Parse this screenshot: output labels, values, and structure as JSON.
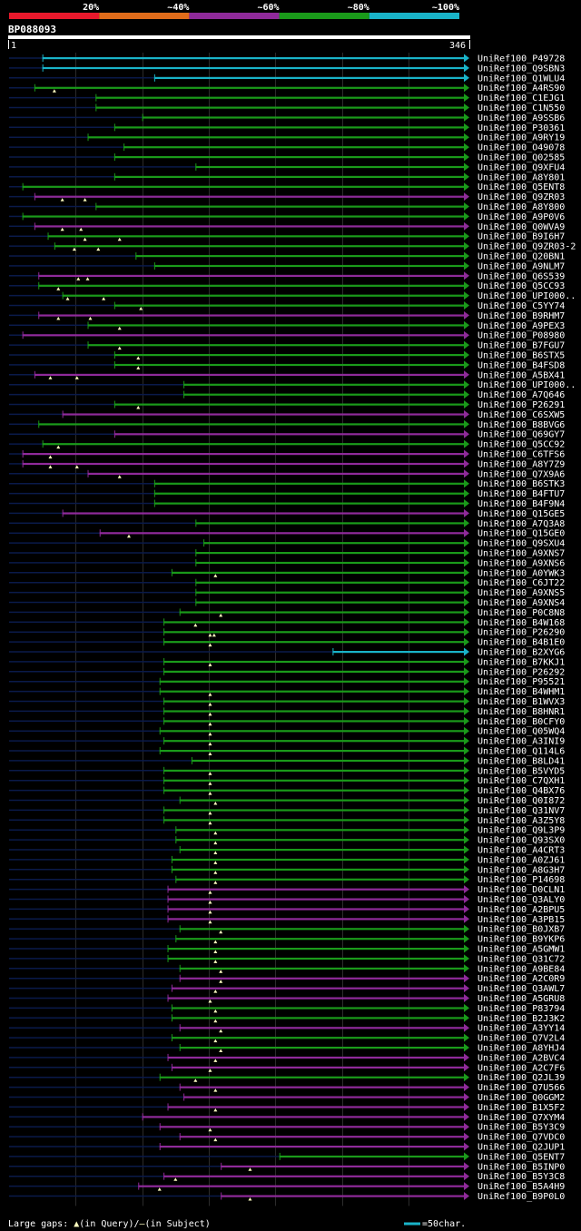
{
  "chart_data": {
    "type": "alignment-overview",
    "title": "BP088093",
    "query_range": [
      1,
      346
    ],
    "ruler_labels": [
      "1",
      "346"
    ],
    "identity_legend": [
      {
        "label": "20%",
        "color": "#e8192c"
      },
      {
        "label": "~40%",
        "color": "#e06c1a"
      },
      {
        "label": "~60%",
        "color": "#8f2a9a"
      },
      {
        "label": "~80%",
        "color": "#1a9a1a"
      },
      {
        "label": "~100%",
        "color": "#19b3c8"
      }
    ],
    "colors": {
      "cyan": "#19b3c8",
      "green": "#1a9a1a",
      "purple": "#8f2a9a",
      "navy": "#0a1a4a",
      "gap": "#ffffc0"
    },
    "hits": [
      {
        "id": "UniRef100_P49728",
        "color": "cyan",
        "start": 26,
        "gaps": []
      },
      {
        "id": "UniRef100_Q9SBN3",
        "color": "cyan",
        "start": 26,
        "gaps": []
      },
      {
        "id": "UniRef100_Q1WLU4",
        "color": "cyan",
        "start": 110,
        "gaps": []
      },
      {
        "id": "UniRef100_A4RS90",
        "color": "green",
        "start": 20,
        "gaps": [
          35
        ]
      },
      {
        "id": "UniRef100_C1EJG1",
        "color": "green",
        "start": 66,
        "gaps": []
      },
      {
        "id": "UniRef100_C1N550",
        "color": "green",
        "start": 66,
        "gaps": []
      },
      {
        "id": "UniRef100_A9SSB6",
        "color": "green",
        "start": 101,
        "gaps": []
      },
      {
        "id": "UniRef100_P30361",
        "color": "green",
        "start": 80,
        "gaps": []
      },
      {
        "id": "UniRef100_A9RY19",
        "color": "green",
        "start": 60,
        "gaps": []
      },
      {
        "id": "UniRef100_O49078",
        "color": "green",
        "start": 87,
        "gaps": []
      },
      {
        "id": "UniRef100_Q02585",
        "color": "green",
        "start": 80,
        "gaps": []
      },
      {
        "id": "UniRef100_Q9XFU4",
        "color": "green",
        "start": 141,
        "gaps": []
      },
      {
        "id": "UniRef100_A8Y801",
        "color": "green",
        "start": 80,
        "gaps": []
      },
      {
        "id": "UniRef100_Q5ENT8",
        "color": "green",
        "start": 11,
        "gaps": []
      },
      {
        "id": "UniRef100_Q9ZR03",
        "color": "purple",
        "start": 20,
        "gaps": [
          41,
          58
        ]
      },
      {
        "id": "UniRef100_A8Y800",
        "color": "green",
        "start": 66,
        "gaps": []
      },
      {
        "id": "UniRef100_A9P0V6",
        "color": "green",
        "start": 11,
        "gaps": []
      },
      {
        "id": "UniRef100_Q0WVA9",
        "color": "purple",
        "start": 20,
        "gaps": [
          41,
          55
        ]
      },
      {
        "id": "UniRef100_B9I6H7",
        "color": "green",
        "start": 30,
        "gaps": [
          58,
          84
        ]
      },
      {
        "id": "UniRef100_Q9ZR03-2",
        "color": "green",
        "start": 35,
        "gaps": [
          50,
          68
        ]
      },
      {
        "id": "UniRef100_Q20BN1",
        "color": "green",
        "start": 96,
        "gaps": []
      },
      {
        "id": "UniRef100_A9NLM7",
        "color": "green",
        "start": 110,
        "gaps": []
      },
      {
        "id": "UniRef100_Q6S539",
        "color": "purple",
        "start": 23,
        "gaps": [
          53,
          60
        ]
      },
      {
        "id": "UniRef100_Q5CC93",
        "color": "green",
        "start": 23,
        "gaps": [
          38
        ]
      },
      {
        "id": "UniRef100_UPI000..",
        "color": "green",
        "start": 41,
        "gaps": [
          45,
          72
        ]
      },
      {
        "id": "UniRef100_C5YY74",
        "color": "green",
        "start": 80,
        "gaps": [
          100
        ]
      },
      {
        "id": "UniRef100_B9RHM7",
        "color": "purple",
        "start": 23,
        "gaps": [
          38,
          62
        ]
      },
      {
        "id": "UniRef100_A9PEX3",
        "color": "green",
        "start": 60,
        "gaps": [
          84
        ]
      },
      {
        "id": "UniRef100_P08980",
        "color": "purple",
        "start": 11,
        "gaps": []
      },
      {
        "id": "UniRef100_B7FGU7",
        "color": "green",
        "start": 60,
        "gaps": [
          84
        ]
      },
      {
        "id": "UniRef100_B6STX5",
        "color": "green",
        "start": 80,
        "gaps": [
          98
        ]
      },
      {
        "id": "UniRef100_B4FSD8",
        "color": "green",
        "start": 80,
        "gaps": [
          98
        ]
      },
      {
        "id": "UniRef100_A5BX41",
        "color": "purple",
        "start": 20,
        "gaps": [
          32,
          52
        ]
      },
      {
        "id": "UniRef100_UPI000..",
        "color": "green",
        "start": 132,
        "gaps": []
      },
      {
        "id": "UniRef100_A7Q646",
        "color": "green",
        "start": 132,
        "gaps": []
      },
      {
        "id": "UniRef100_P26291",
        "color": "green",
        "start": 80,
        "gaps": [
          98
        ]
      },
      {
        "id": "UniRef100_C6SXW5",
        "color": "purple",
        "start": 41,
        "gaps": []
      },
      {
        "id": "UniRef100_B8BVG6",
        "color": "green",
        "start": 23,
        "gaps": []
      },
      {
        "id": "UniRef100_Q69GY7",
        "color": "purple",
        "start": 80,
        "gaps": []
      },
      {
        "id": "UniRef100_Q5CC92",
        "color": "green",
        "start": 26,
        "gaps": [
          38
        ]
      },
      {
        "id": "UniRef100_C6TFS6",
        "color": "purple",
        "start": 11,
        "gaps": [
          32
        ]
      },
      {
        "id": "UniRef100_A8Y7Z9",
        "color": "purple",
        "start": 11,
        "gaps": [
          32,
          52
        ]
      },
      {
        "id": "UniRef100_Q7X9A6",
        "color": "purple",
        "start": 60,
        "gaps": [
          84
        ]
      },
      {
        "id": "UniRef100_B6STK3",
        "color": "green",
        "start": 110,
        "gaps": []
      },
      {
        "id": "UniRef100_B4FTU7",
        "color": "green",
        "start": 110,
        "gaps": []
      },
      {
        "id": "UniRef100_B4F9N4",
        "color": "green",
        "start": 110,
        "gaps": []
      },
      {
        "id": "UniRef100_Q15GE5",
        "color": "purple",
        "start": 41,
        "gaps": []
      },
      {
        "id": "UniRef100_A7Q3A8",
        "color": "green",
        "start": 141,
        "gaps": []
      },
      {
        "id": "UniRef100_Q15GE0",
        "color": "purple",
        "start": 69,
        "gaps": [
          91
        ]
      },
      {
        "id": "UniRef100_Q9SXU4",
        "color": "green",
        "start": 147,
        "gaps": []
      },
      {
        "id": "UniRef100_A9XNS7",
        "color": "green",
        "start": 141,
        "gaps": []
      },
      {
        "id": "UniRef100_A9XNS6",
        "color": "green",
        "start": 141,
        "gaps": []
      },
      {
        "id": "UniRef100_A0YWK3",
        "color": "green",
        "start": 123,
        "gaps": [
          156
        ]
      },
      {
        "id": "UniRef100_C6JT22",
        "color": "green",
        "start": 141,
        "gaps": []
      },
      {
        "id": "UniRef100_A9XNS5",
        "color": "green",
        "start": 141,
        "gaps": []
      },
      {
        "id": "UniRef100_A9XNS4",
        "color": "green",
        "start": 141,
        "gaps": []
      },
      {
        "id": "UniRef100_P0C8N8",
        "color": "green",
        "start": 129,
        "gaps": [
          160
        ]
      },
      {
        "id": "UniRef100_B4W168",
        "color": "green",
        "start": 117,
        "gaps": [
          141
        ]
      },
      {
        "id": "UniRef100_P26290",
        "color": "green",
        "start": 117,
        "gaps": [
          152,
          155
        ]
      },
      {
        "id": "UniRef100_B4B1E0",
        "color": "green",
        "start": 117,
        "gaps": [
          152
        ]
      },
      {
        "id": "UniRef100_B2XYG6",
        "color": "cyan",
        "start": 244,
        "gaps": []
      },
      {
        "id": "UniRef100_B7KKJ1",
        "color": "green",
        "start": 117,
        "gaps": [
          152
        ]
      },
      {
        "id": "UniRef100_P26292",
        "color": "green",
        "start": 117,
        "gaps": []
      },
      {
        "id": "UniRef100_P95521",
        "color": "green",
        "start": 114,
        "gaps": []
      },
      {
        "id": "UniRef100_B4WHM1",
        "color": "green",
        "start": 114,
        "gaps": [
          152
        ]
      },
      {
        "id": "UniRef100_B1WVX3",
        "color": "green",
        "start": 117,
        "gaps": [
          152
        ]
      },
      {
        "id": "UniRef100_B8HNR1",
        "color": "green",
        "start": 117,
        "gaps": [
          152
        ]
      },
      {
        "id": "UniRef100_B0CFY0",
        "color": "green",
        "start": 117,
        "gaps": [
          152
        ]
      },
      {
        "id": "UniRef100_Q05WQ4",
        "color": "green",
        "start": 114,
        "gaps": [
          152
        ]
      },
      {
        "id": "UniRef100_A3INI9",
        "color": "green",
        "start": 117,
        "gaps": [
          152
        ]
      },
      {
        "id": "UniRef100_Q114L6",
        "color": "green",
        "start": 114,
        "gaps": [
          152
        ]
      },
      {
        "id": "UniRef100_B8LD41",
        "color": "green",
        "start": 138,
        "gaps": []
      },
      {
        "id": "UniRef100_B5VYD5",
        "color": "green",
        "start": 117,
        "gaps": [
          152
        ]
      },
      {
        "id": "UniRef100_C7QXH1",
        "color": "green",
        "start": 117,
        "gaps": [
          152
        ]
      },
      {
        "id": "UniRef100_Q4BX76",
        "color": "green",
        "start": 117,
        "gaps": [
          152
        ]
      },
      {
        "id": "UniRef100_Q0I872",
        "color": "green",
        "start": 129,
        "gaps": [
          156
        ]
      },
      {
        "id": "UniRef100_Q31NV7",
        "color": "green",
        "start": 117,
        "gaps": [
          152
        ]
      },
      {
        "id": "UniRef100_A3Z5Y8",
        "color": "green",
        "start": 117,
        "gaps": [
          152
        ]
      },
      {
        "id": "UniRef100_Q9L3P9",
        "color": "green",
        "start": 126,
        "gaps": [
          156
        ]
      },
      {
        "id": "UniRef100_Q93SX0",
        "color": "green",
        "start": 126,
        "gaps": [
          156
        ]
      },
      {
        "id": "UniRef100_A4CRT3",
        "color": "green",
        "start": 129,
        "gaps": [
          156
        ]
      },
      {
        "id": "UniRef100_A0ZJ61",
        "color": "green",
        "start": 123,
        "gaps": [
          156
        ]
      },
      {
        "id": "UniRef100_A8G3H7",
        "color": "green",
        "start": 123,
        "gaps": [
          156
        ]
      },
      {
        "id": "UniRef100_P14698",
        "color": "green",
        "start": 126,
        "gaps": [
          156
        ]
      },
      {
        "id": "UniRef100_D0CLN1",
        "color": "purple",
        "start": 120,
        "gaps": [
          152
        ]
      },
      {
        "id": "UniRef100_Q3ALY0",
        "color": "purple",
        "start": 120,
        "gaps": [
          152
        ]
      },
      {
        "id": "UniRef100_A2BPU5",
        "color": "purple",
        "start": 120,
        "gaps": [
          152
        ]
      },
      {
        "id": "UniRef100_A3PB15",
        "color": "purple",
        "start": 120,
        "gaps": [
          152
        ]
      },
      {
        "id": "UniRef100_B0JXB7",
        "color": "green",
        "start": 129,
        "gaps": [
          160
        ]
      },
      {
        "id": "UniRef100_B9YKP6",
        "color": "green",
        "start": 126,
        "gaps": [
          156
        ]
      },
      {
        "id": "UniRef100_A5GMW1",
        "color": "green",
        "start": 120,
        "gaps": [
          156
        ]
      },
      {
        "id": "UniRef100_Q31C72",
        "color": "green",
        "start": 120,
        "gaps": [
          156
        ]
      },
      {
        "id": "UniRef100_A9BE84",
        "color": "green",
        "start": 129,
        "gaps": [
          160
        ]
      },
      {
        "id": "UniRef100_A2C0R9",
        "color": "purple",
        "start": 129,
        "gaps": [
          160
        ]
      },
      {
        "id": "UniRef100_Q3AWL7",
        "color": "purple",
        "start": 123,
        "gaps": [
          156
        ]
      },
      {
        "id": "UniRef100_A5GRU8",
        "color": "purple",
        "start": 120,
        "gaps": [
          152
        ]
      },
      {
        "id": "UniRef100_P83794",
        "color": "green",
        "start": 123,
        "gaps": [
          156
        ]
      },
      {
        "id": "UniRef100_B2J3K2",
        "color": "green",
        "start": 123,
        "gaps": [
          156
        ]
      },
      {
        "id": "UniRef100_A3YY14",
        "color": "purple",
        "start": 129,
        "gaps": [
          160
        ]
      },
      {
        "id": "UniRef100_Q7V2L4",
        "color": "green",
        "start": 123,
        "gaps": [
          156
        ]
      },
      {
        "id": "UniRef100_A8YHJ4",
        "color": "green",
        "start": 129,
        "gaps": [
          160
        ]
      },
      {
        "id": "UniRef100_A2BVC4",
        "color": "purple",
        "start": 120,
        "gaps": [
          156
        ]
      },
      {
        "id": "UniRef100_A2C7F6",
        "color": "purple",
        "start": 123,
        "gaps": [
          152
        ]
      },
      {
        "id": "UniRef100_Q2JL39",
        "color": "green",
        "start": 114,
        "gaps": [
          141
        ]
      },
      {
        "id": "UniRef100_Q7U566",
        "color": "purple",
        "start": 129,
        "gaps": [
          156
        ]
      },
      {
        "id": "UniRef100_Q0GGM2",
        "color": "purple",
        "start": 132,
        "gaps": []
      },
      {
        "id": "UniRef100_B1X5F2",
        "color": "purple",
        "start": 120,
        "gaps": [
          156
        ]
      },
      {
        "id": "UniRef100_Q7XYM4",
        "color": "purple",
        "start": 101,
        "gaps": []
      },
      {
        "id": "UniRef100_B5Y3C9",
        "color": "purple",
        "start": 114,
        "gaps": [
          152
        ]
      },
      {
        "id": "UniRef100_Q7VDC0",
        "color": "purple",
        "start": 129,
        "gaps": [
          156
        ]
      },
      {
        "id": "UniRef100_Q2JUP1",
        "color": "purple",
        "start": 114,
        "gaps": []
      },
      {
        "id": "UniRef100_Q5ENT7",
        "color": "green",
        "start": 204,
        "gaps": []
      },
      {
        "id": "UniRef100_B5INP0",
        "color": "purple",
        "start": 160,
        "gaps": [
          182
        ]
      },
      {
        "id": "UniRef100_B5Y3C8",
        "color": "purple",
        "start": 117,
        "gaps": [
          126
        ]
      },
      {
        "id": "UniRef100_B5A4H9",
        "color": "purple",
        "start": 98,
        "gaps": [
          114
        ]
      },
      {
        "id": "UniRef100_B9P0L0",
        "color": "purple",
        "start": 160,
        "gaps": [
          182
        ]
      }
    ],
    "footer": {
      "gap_label": "Large gaps: ",
      "gap_query": "(in Query)/",
      "gap_subject": "(in Subject)",
      "scale_label": "=50char."
    }
  }
}
